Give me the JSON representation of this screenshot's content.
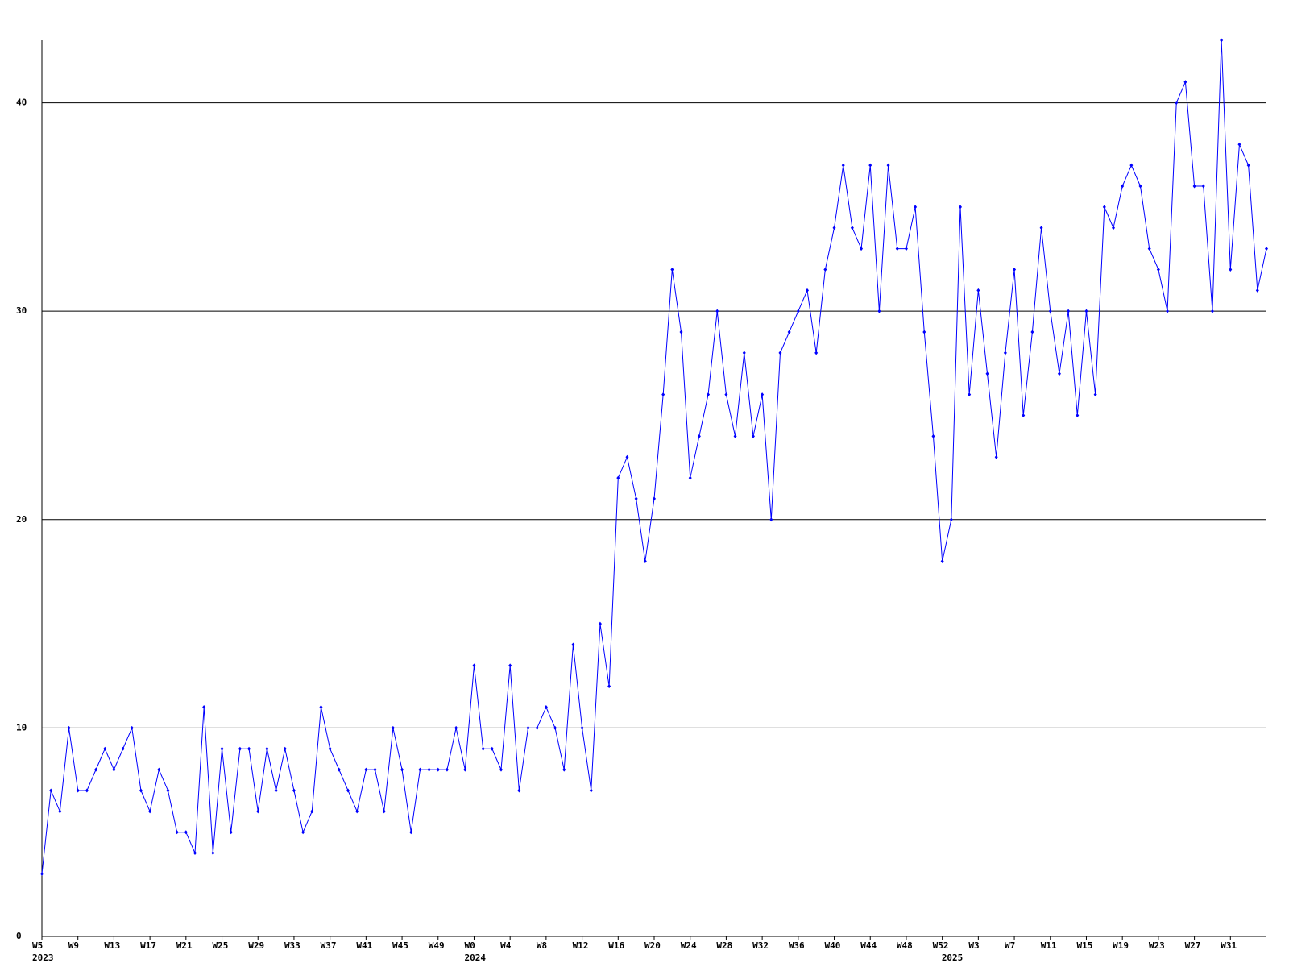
{
  "chart_data": {
    "type": "line",
    "categories": [
      "W5",
      null,
      null,
      null,
      "W9",
      null,
      null,
      null,
      "W13",
      null,
      null,
      null,
      "W17",
      null,
      null,
      null,
      "W21",
      null,
      null,
      null,
      "W25",
      null,
      null,
      null,
      "W29",
      null,
      null,
      null,
      "W33",
      null,
      null,
      null,
      "W37",
      null,
      null,
      null,
      "W41",
      null,
      null,
      null,
      "W45",
      null,
      null,
      null,
      "W49",
      null,
      null,
      null,
      "W0",
      null,
      null,
      null,
      "W4",
      null,
      null,
      null,
      "W8",
      null,
      null,
      null,
      "W12",
      null,
      null,
      null,
      "W16",
      null,
      null,
      null,
      "W20",
      null,
      null,
      null,
      "W24",
      null,
      null,
      null,
      "W28",
      null,
      null,
      null,
      "W32",
      null,
      null,
      null,
      "W36",
      null,
      null,
      null,
      "W40",
      null,
      null,
      null,
      "W44",
      null,
      null,
      null,
      "W48",
      null,
      null,
      null,
      "W52",
      null,
      null,
      null,
      "W3",
      null,
      null,
      null,
      "W7",
      null,
      null,
      null,
      "W11",
      null,
      null,
      null,
      "W15",
      null,
      null,
      null,
      "W19",
      null,
      null,
      null,
      "W23",
      null,
      null,
      null,
      "W27",
      null,
      null,
      null,
      "W31",
      null,
      null,
      null,
      null
    ],
    "category_years": [
      "2023",
      null,
      null,
      null,
      null,
      null,
      null,
      null,
      null,
      null,
      null,
      null,
      null,
      null,
      null,
      null,
      null,
      null,
      null,
      null,
      null,
      null,
      null,
      null,
      null,
      null,
      null,
      null,
      null,
      null,
      null,
      null,
      null,
      null,
      null,
      null,
      null,
      null,
      null,
      null,
      null,
      null,
      null,
      null,
      null,
      null,
      null,
      null,
      "2024",
      null,
      null,
      null,
      null,
      null,
      null,
      null,
      null,
      null,
      null,
      null,
      null,
      null,
      null,
      null,
      null,
      null,
      null,
      null,
      null,
      null,
      null,
      null,
      null,
      null,
      null,
      null,
      null,
      null,
      null,
      null,
      null,
      null,
      null,
      null,
      null,
      null,
      null,
      null,
      null,
      null,
      null,
      null,
      null,
      null,
      null,
      null,
      null,
      null,
      null,
      null,
      null,
      "2025",
      null,
      null,
      null,
      null,
      null,
      null,
      null,
      null,
      null,
      null,
      null,
      null,
      null,
      null,
      null,
      null,
      null,
      null,
      null,
      null,
      null,
      null,
      null,
      null,
      null,
      null,
      null,
      null,
      null,
      null,
      null,
      null,
      null,
      null,
      null
    ],
    "series": [
      {
        "color": "#0000ff",
        "values": [
          3,
          7,
          6,
          10,
          7,
          7,
          8,
          9,
          8,
          9,
          10,
          7,
          6,
          8,
          7,
          5,
          5,
          4,
          11,
          4,
          9,
          5,
          9,
          9,
          6,
          9,
          7,
          9,
          7,
          5,
          6,
          11,
          9,
          8,
          7,
          6,
          8,
          8,
          6,
          10,
          8,
          5,
          8,
          8,
          8,
          8,
          10,
          8,
          13,
          9,
          9,
          8,
          13,
          7,
          10,
          10,
          11,
          10,
          8,
          14,
          10,
          7,
          15,
          12,
          22,
          23,
          21,
          18,
          21,
          26,
          32,
          29,
          22,
          24,
          26,
          30,
          26,
          24,
          28,
          24,
          26,
          20,
          28,
          29,
          30,
          31,
          28,
          32,
          34,
          37,
          34,
          33,
          37,
          30,
          37,
          33,
          33,
          35,
          29,
          24,
          18,
          20,
          35,
          26,
          31,
          27,
          23,
          28,
          32,
          25,
          29,
          34,
          30,
          27,
          30,
          25,
          30,
          26,
          35,
          34,
          36,
          37,
          36,
          33,
          32,
          30,
          40,
          41,
          36,
          36,
          30,
          43,
          32,
          38,
          37,
          31,
          33
        ]
      }
    ],
    "ylim": [
      0,
      43
    ],
    "yticks": [
      0,
      10,
      20,
      30,
      40
    ],
    "grid": true
  }
}
